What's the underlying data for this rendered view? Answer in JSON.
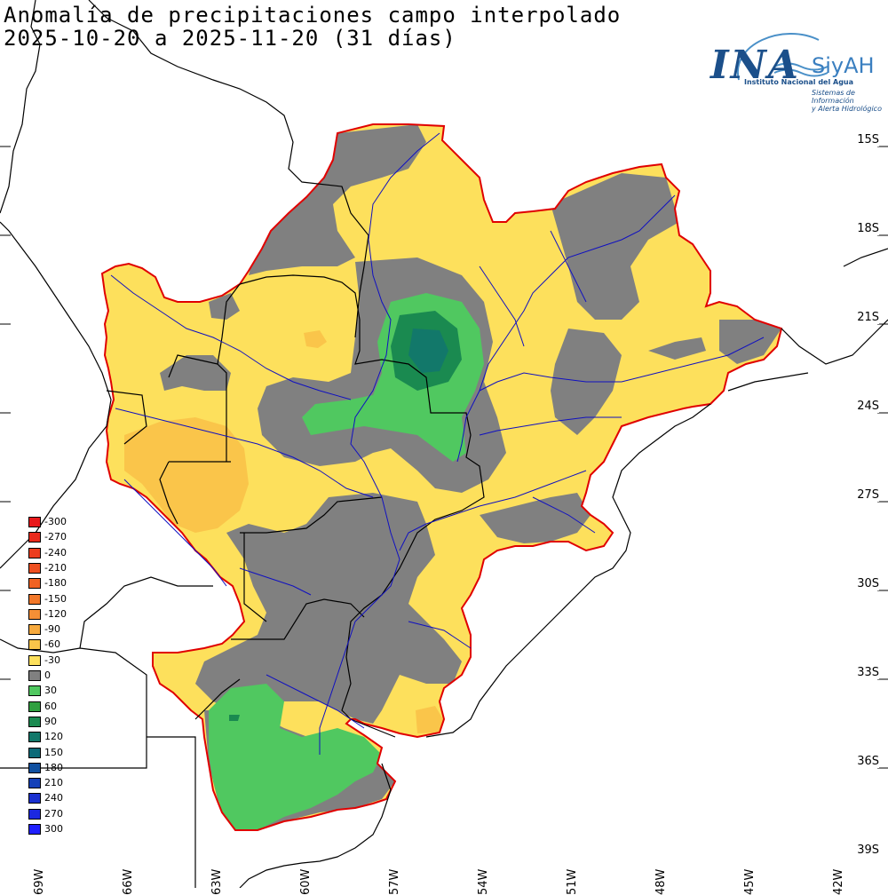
{
  "map": {
    "title_line1": "Anomalía de precipitaciones campo interpolado",
    "title_line2": "2025-10-20 a 2025-11-20 (31 días)"
  },
  "logo": {
    "main": "INA",
    "secondary": "SiyAH",
    "sub1": "Instituto Nacional del Agua",
    "sub2_line1": "Sistemas de Información",
    "sub2_line2": "y Alerta Hidrológico"
  },
  "lat_labels": [
    "15S",
    "18S",
    "21S",
    "24S",
    "27S",
    "30S",
    "33S",
    "36S",
    "39S"
  ],
  "lon_labels": [
    "69W",
    "66W",
    "63W",
    "60W",
    "57W",
    "54W",
    "51W",
    "48W",
    "45W",
    "42W"
  ],
  "legend": [
    {
      "label": "-300",
      "color": "#e8181a"
    },
    {
      "label": "-270",
      "color": "#ea2a1c"
    },
    {
      "label": "-240",
      "color": "#ec3d1e"
    },
    {
      "label": "-210",
      "color": "#ee4f20"
    },
    {
      "label": "-180",
      "color": "#f06222"
    },
    {
      "label": "-150",
      "color": "#f2782a"
    },
    {
      "label": "-120",
      "color": "#f48f36"
    },
    {
      "label": "-90",
      "color": "#f7aa3e"
    },
    {
      "label": "-60",
      "color": "#fac54a"
    },
    {
      "label": "-30",
      "color": "#fde05c"
    },
    {
      "label": "0",
      "color": "#808080"
    },
    {
      "label": "30",
      "color": "#50c860"
    },
    {
      "label": "60",
      "color": "#30a040"
    },
    {
      "label": "90",
      "color": "#1a8a50"
    },
    {
      "label": "120",
      "color": "#12786a"
    },
    {
      "label": "150",
      "color": "#0c6a78"
    },
    {
      "label": "180",
      "color": "#1050a0"
    },
    {
      "label": "210",
      "color": "#1440b8"
    },
    {
      "label": "240",
      "color": "#1a30d0"
    },
    {
      "label": "270",
      "color": "#1c28e0"
    },
    {
      "label": "300",
      "color": "#2020ff"
    }
  ],
  "colors": {
    "basin_outline": "#e00000",
    "rivers": "#1010c0",
    "borders": "#000000",
    "ocean_coast": "#000000"
  }
}
